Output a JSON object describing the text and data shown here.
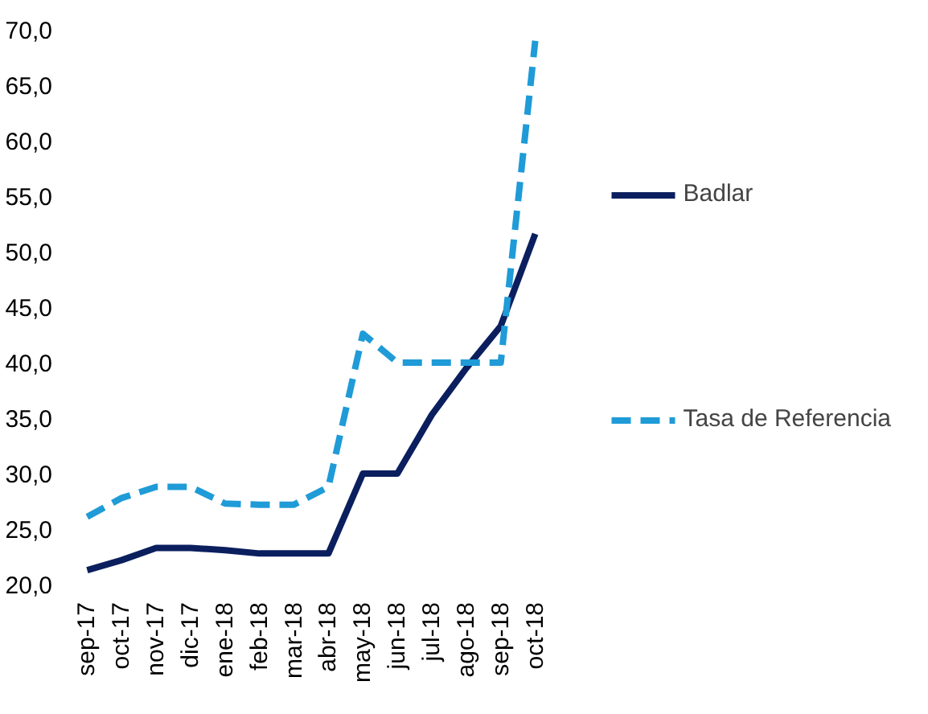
{
  "chart_data": {
    "type": "line",
    "categories": [
      "sep-17",
      "oct-17",
      "nov-17",
      "dic-17",
      "ene-18",
      "feb-18",
      "mar-18",
      "abr-18",
      "may-18",
      "jun-18",
      "jul-18",
      "ago-18",
      "sep-18",
      "oct-18"
    ],
    "series": [
      {
        "name": "Badlar",
        "color": "#0b1f5e",
        "line_style": "solid",
        "values": [
          21.3,
          22.2,
          23.3,
          23.3,
          23.1,
          22.8,
          22.8,
          22.8,
          30.0,
          30.0,
          35.3,
          39.5,
          43.3,
          51.6
        ]
      },
      {
        "name": "Tasa de Referencia",
        "color": "#1f9bd7",
        "line_style": "dashed",
        "values": [
          26.1,
          27.8,
          28.8,
          28.8,
          27.3,
          27.2,
          27.2,
          28.8,
          42.6,
          40.0,
          40.0,
          40.0,
          40.0,
          69.0
        ]
      }
    ],
    "ylim": [
      20,
      70
    ],
    "yticks": [
      {
        "value": 20,
        "label": "20,0"
      },
      {
        "value": 25,
        "label": "25,0"
      },
      {
        "value": 30,
        "label": "30,0"
      },
      {
        "value": 35,
        "label": "35,0"
      },
      {
        "value": 40,
        "label": "40,0"
      },
      {
        "value": 45,
        "label": "45,0"
      },
      {
        "value": 50,
        "label": "50,0"
      },
      {
        "value": 55,
        "label": "55,0"
      },
      {
        "value": 60,
        "label": "60,0"
      },
      {
        "value": 65,
        "label": "65,0"
      },
      {
        "value": 70,
        "label": "70,0"
      }
    ],
    "grid": false,
    "legend": "right",
    "marker": "none"
  }
}
